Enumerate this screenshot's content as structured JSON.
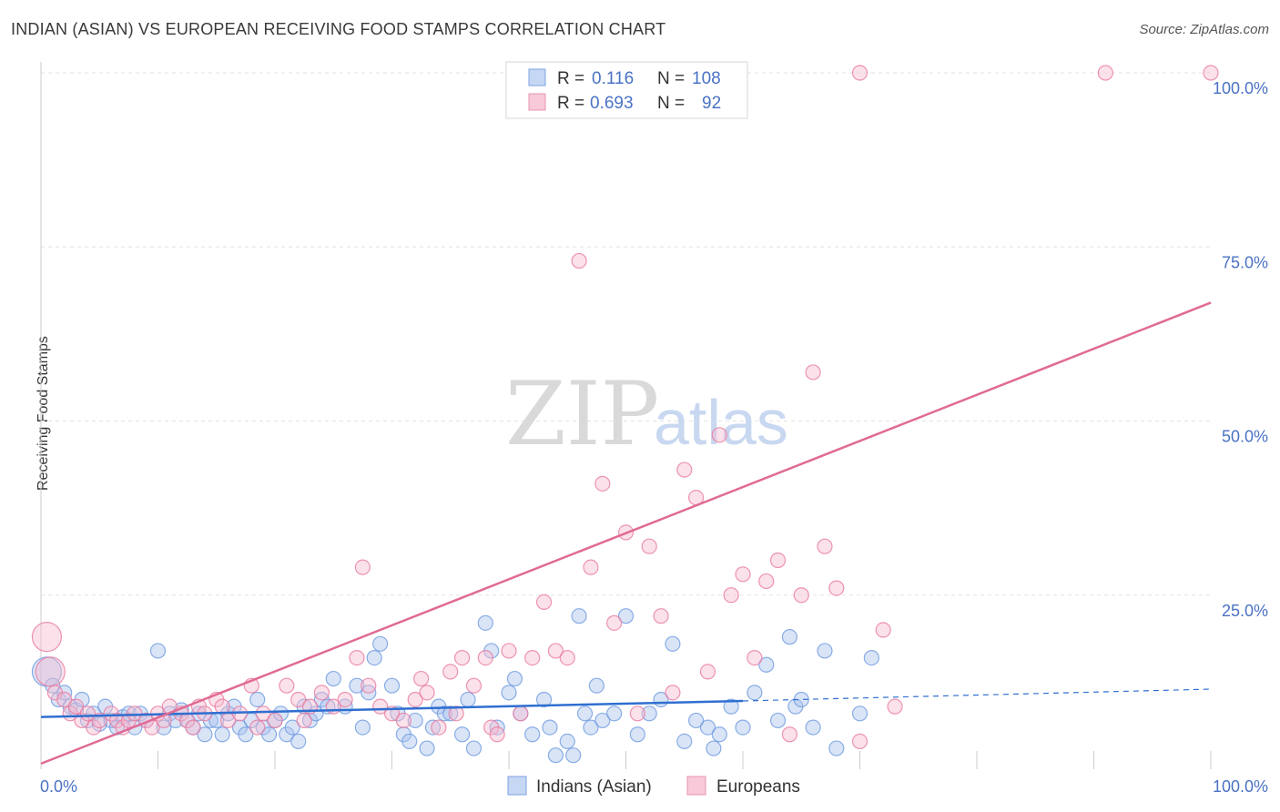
{
  "title": "INDIAN (ASIAN) VS EUROPEAN RECEIVING FOOD STAMPS CORRELATION CHART",
  "source": "Source: ZipAtlas.com",
  "watermark": {
    "zip": "ZIP",
    "atlas": "atlas"
  },
  "colors": {
    "blue": "#6f9be0",
    "blue_fill": "#aac4ee",
    "blue_line": "#2f6fd0",
    "pink": "#e87aa0",
    "pink_fill": "#f6bcd0",
    "pink_line": "#e06a95",
    "grid": "#e3e3e3"
  },
  "legend": {
    "rows": [
      {
        "r_label": "R =",
        "r_value": "0.116",
        "n_label": "N =",
        "n_value": "108"
      },
      {
        "r_label": "R =",
        "r_value": "0.693",
        "n_label": "N =",
        "n_value": "92"
      }
    ]
  },
  "chart_data": {
    "type": "scatter",
    "title": "INDIAN (ASIAN) VS EUROPEAN RECEIVING FOOD STAMPS CORRELATION CHART",
    "xlabel": "",
    "ylabel": "Receiving Food Stamps",
    "xlim": [
      0,
      100
    ],
    "ylim": [
      0,
      100
    ],
    "x_tick_labels": [
      "0.0%",
      "100.0%"
    ],
    "y_tick_labels": [
      {
        "value": 25,
        "label": "25.0%"
      },
      {
        "value": 50,
        "label": "50.0%"
      },
      {
        "value": 75,
        "label": "75.0%"
      },
      {
        "value": 100,
        "label": "100.0%"
      }
    ],
    "grid": true,
    "legend_position": "bottom",
    "series": [
      {
        "name": "Indians (Asian)",
        "color": "#6f9be0",
        "r": 0.116,
        "n": 108,
        "trend": {
          "x0": 0,
          "y0": 7.5,
          "x1": 60,
          "y1": 9.8,
          "dash_to_x": 100,
          "dash_to_y": 11.5
        },
        "points": [
          [
            0.5,
            14
          ],
          [
            1,
            12
          ],
          [
            1.5,
            10
          ],
          [
            2,
            11
          ],
          [
            2.5,
            9
          ],
          [
            3,
            8.5
          ],
          [
            3.5,
            10
          ],
          [
            4,
            7
          ],
          [
            4.5,
            8
          ],
          [
            5,
            6.5
          ],
          [
            5.5,
            9
          ],
          [
            6,
            7
          ],
          [
            6.5,
            6
          ],
          [
            7,
            7.5
          ],
          [
            7.5,
            8
          ],
          [
            8,
            6
          ],
          [
            8.5,
            8
          ],
          [
            9,
            7
          ],
          [
            10,
            17
          ],
          [
            10.5,
            6
          ],
          [
            11,
            8
          ],
          [
            11.5,
            7
          ],
          [
            12,
            8.5
          ],
          [
            12.5,
            7
          ],
          [
            13,
            6
          ],
          [
            13.5,
            8
          ],
          [
            14,
            5
          ],
          [
            14.5,
            7
          ],
          [
            15,
            7
          ],
          [
            15.5,
            5
          ],
          [
            16,
            8
          ],
          [
            16.5,
            9
          ],
          [
            17,
            6
          ],
          [
            17.5,
            5
          ],
          [
            18,
            7
          ],
          [
            18.5,
            10
          ],
          [
            19,
            6
          ],
          [
            19.5,
            5
          ],
          [
            20,
            7
          ],
          [
            20.5,
            8
          ],
          [
            21,
            5
          ],
          [
            21.5,
            6
          ],
          [
            22,
            4
          ],
          [
            22.5,
            9
          ],
          [
            23,
            7
          ],
          [
            23.5,
            8
          ],
          [
            24,
            10
          ],
          [
            24.5,
            9
          ],
          [
            25,
            13
          ],
          [
            26,
            9
          ],
          [
            27,
            12
          ],
          [
            27.5,
            6
          ],
          [
            28,
            11
          ],
          [
            28.5,
            16
          ],
          [
            29,
            18
          ],
          [
            30,
            12
          ],
          [
            30.5,
            8
          ],
          [
            31,
            5
          ],
          [
            31.5,
            4
          ],
          [
            32,
            7
          ],
          [
            33,
            3
          ],
          [
            33.5,
            6
          ],
          [
            34,
            9
          ],
          [
            34.5,
            8
          ],
          [
            35,
            8
          ],
          [
            36,
            5
          ],
          [
            36.5,
            10
          ],
          [
            37,
            3
          ],
          [
            38,
            21
          ],
          [
            38.5,
            17
          ],
          [
            39,
            6
          ],
          [
            40,
            11
          ],
          [
            40.5,
            13
          ],
          [
            41,
            8
          ],
          [
            42,
            5
          ],
          [
            43,
            10
          ],
          [
            43.5,
            6
          ],
          [
            44,
            2
          ],
          [
            45,
            4
          ],
          [
            45.5,
            2
          ],
          [
            46,
            22
          ],
          [
            46.5,
            8
          ],
          [
            47,
            6
          ],
          [
            47.5,
            12
          ],
          [
            48,
            7
          ],
          [
            49,
            8
          ],
          [
            50,
            22
          ],
          [
            51,
            5
          ],
          [
            52,
            8
          ],
          [
            53,
            10
          ],
          [
            54,
            18
          ],
          [
            55,
            4
          ],
          [
            56,
            7
          ],
          [
            57,
            6
          ],
          [
            57.5,
            3
          ],
          [
            58,
            5
          ],
          [
            59,
            9
          ],
          [
            60,
            6
          ],
          [
            61,
            11
          ],
          [
            62,
            15
          ],
          [
            63,
            7
          ],
          [
            64,
            19
          ],
          [
            64.5,
            9
          ],
          [
            65,
            10
          ],
          [
            66,
            6
          ],
          [
            67,
            17
          ],
          [
            68,
            3
          ],
          [
            70,
            8
          ],
          [
            71,
            16
          ]
        ]
      },
      {
        "name": "Europeans",
        "color": "#e87aa0",
        "r": 0.693,
        "n": 92,
        "trend": {
          "x0": 0,
          "y0": 0.8,
          "x1": 100,
          "y1": 67
        },
        "points": [
          [
            0.5,
            19
          ],
          [
            0.8,
            14
          ],
          [
            1.2,
            11
          ],
          [
            2,
            10
          ],
          [
            2.5,
            8
          ],
          [
            3,
            9
          ],
          [
            3.5,
            7
          ],
          [
            4,
            8
          ],
          [
            4.5,
            6
          ],
          [
            5,
            7
          ],
          [
            6,
            8
          ],
          [
            6.5,
            7
          ],
          [
            7,
            6
          ],
          [
            7.5,
            7
          ],
          [
            8,
            8
          ],
          [
            9,
            7
          ],
          [
            9.5,
            6
          ],
          [
            10,
            8
          ],
          [
            10.5,
            7
          ],
          [
            11,
            9
          ],
          [
            12,
            8
          ],
          [
            12.5,
            7
          ],
          [
            13,
            6
          ],
          [
            13.5,
            9
          ],
          [
            14,
            8
          ],
          [
            15,
            10
          ],
          [
            15.5,
            9
          ],
          [
            16,
            7
          ],
          [
            17,
            8
          ],
          [
            18,
            12
          ],
          [
            18.5,
            6
          ],
          [
            19,
            8
          ],
          [
            20,
            7
          ],
          [
            21,
            12
          ],
          [
            22,
            10
          ],
          [
            22.5,
            7
          ],
          [
            23,
            9
          ],
          [
            24,
            11
          ],
          [
            25,
            9
          ],
          [
            26,
            10
          ],
          [
            27,
            16
          ],
          [
            27.5,
            29
          ],
          [
            28,
            12
          ],
          [
            29,
            9
          ],
          [
            30,
            8
          ],
          [
            31,
            7
          ],
          [
            32,
            10
          ],
          [
            32.5,
            13
          ],
          [
            33,
            11
          ],
          [
            34,
            6
          ],
          [
            35,
            14
          ],
          [
            35.5,
            8
          ],
          [
            36,
            16
          ],
          [
            37,
            12
          ],
          [
            38,
            16
          ],
          [
            38.5,
            6
          ],
          [
            39,
            5
          ],
          [
            40,
            17
          ],
          [
            41,
            8
          ],
          [
            42,
            16
          ],
          [
            43,
            24
          ],
          [
            44,
            17
          ],
          [
            45,
            16
          ],
          [
            46,
            73
          ],
          [
            47,
            29
          ],
          [
            48,
            41
          ],
          [
            49,
            21
          ],
          [
            50,
            34
          ],
          [
            51,
            8
          ],
          [
            52,
            32
          ],
          [
            53,
            22
          ],
          [
            54,
            11
          ],
          [
            55,
            43
          ],
          [
            56,
            39
          ],
          [
            57,
            14
          ],
          [
            58,
            48
          ],
          [
            59,
            25
          ],
          [
            60,
            28
          ],
          [
            61,
            16
          ],
          [
            62,
            27
          ],
          [
            63,
            30
          ],
          [
            64,
            5
          ],
          [
            65,
            25
          ],
          [
            66,
            57
          ],
          [
            67,
            32
          ],
          [
            68,
            26
          ],
          [
            70,
            4
          ],
          [
            72,
            20
          ],
          [
            73,
            9
          ],
          [
            70,
            100
          ],
          [
            91,
            100
          ],
          [
            100,
            100
          ]
        ]
      }
    ]
  },
  "bottom_legend": [
    {
      "label": "Indians (Asian)"
    },
    {
      "label": "Europeans"
    }
  ]
}
